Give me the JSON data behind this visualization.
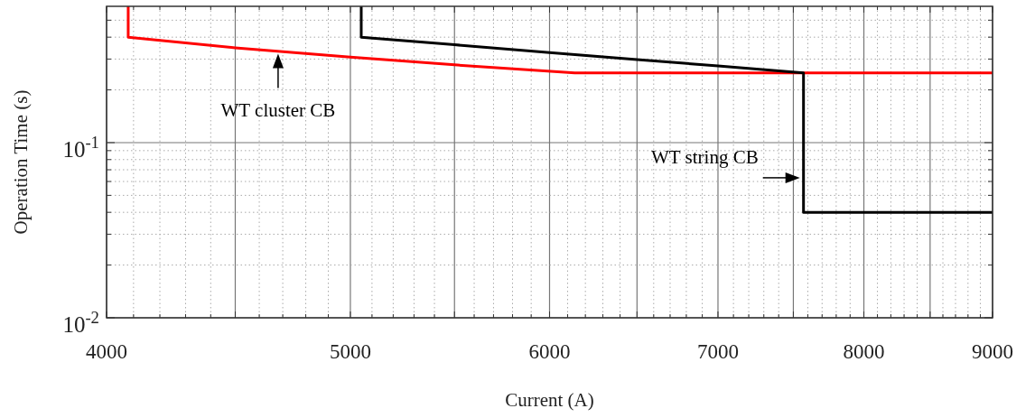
{
  "chart_data": {
    "type": "line",
    "xlabel": "Current (A)",
    "ylabel": "Operation Time (s)",
    "log": "xy",
    "grid": true,
    "line_style": "solid",
    "marker": "none",
    "xlim": [
      4000,
      9000
    ],
    "ylim": [
      0.01,
      0.6
    ],
    "xticks": [
      4000,
      {
        "value": 4100,
        "label": null
      },
      {
        "value": 4200,
        "label": null
      },
      {
        "value": 4300,
        "label": null
      },
      {
        "value": 4400,
        "label": null
      },
      {
        "value": 4500,
        "label": null
      },
      {
        "value": 4600,
        "label": null
      },
      {
        "value": 4700,
        "label": null
      },
      {
        "value": 4800,
        "label": null
      },
      {
        "value": 4900,
        "label": null
      },
      5000,
      {
        "value": 5100,
        "label": null
      },
      {
        "value": 5200,
        "label": null
      },
      {
        "value": 5300,
        "label": null
      },
      {
        "value": 5400,
        "label": null
      },
      {
        "value": 5500,
        "label": null
      },
      {
        "value": 5600,
        "label": null
      },
      {
        "value": 5700,
        "label": null
      },
      {
        "value": 5800,
        "label": null
      },
      {
        "value": 5900,
        "label": null
      },
      6000,
      {
        "value": 6100,
        "label": null
      },
      {
        "value": 6200,
        "label": null
      },
      {
        "value": 6300,
        "label": null
      },
      {
        "value": 6400,
        "label": null
      },
      {
        "value": 6500,
        "label": null
      },
      {
        "value": 6600,
        "label": null
      },
      {
        "value": 6700,
        "label": null
      },
      {
        "value": 6800,
        "label": null
      },
      {
        "value": 6900,
        "label": null
      },
      7000,
      {
        "value": 7100,
        "label": null
      },
      {
        "value": 7200,
        "label": null
      },
      {
        "value": 7300,
        "label": null
      },
      {
        "value": 7400,
        "label": null
      },
      {
        "value": 7500,
        "label": null
      },
      {
        "value": 7600,
        "label": null
      },
      {
        "value": 7700,
        "label": null
      },
      {
        "value": 7800,
        "label": null
      },
      {
        "value": 7900,
        "label": null
      },
      8000,
      {
        "value": 8100,
        "label": null
      },
      {
        "value": 8200,
        "label": null
      },
      {
        "value": 8300,
        "label": null
      },
      {
        "value": 8400,
        "label": null
      },
      {
        "value": 8500,
        "label": null
      },
      {
        "value": 8600,
        "label": null
      },
      {
        "value": 8700,
        "label": null
      },
      {
        "value": 8800,
        "label": null
      },
      {
        "value": 8900,
        "label": null
      },
      9000
    ],
    "yticks": [
      {
        "value": 0.01,
        "label": "10$^{-2}$"
      },
      {
        "value": 0.02,
        "label": null
      },
      {
        "value": 0.03,
        "label": null
      },
      {
        "value": 0.04,
        "label": null
      },
      {
        "value": 0.05,
        "label": null
      },
      {
        "value": 0.06,
        "label": null
      },
      {
        "value": 0.07,
        "label": null
      },
      {
        "value": 0.08,
        "label": null
      },
      {
        "value": 0.09,
        "label": null
      },
      {
        "value": 0.1,
        "label": "10$^{-1}$"
      },
      {
        "value": 0.2,
        "label": null
      },
      {
        "value": 0.3,
        "label": null
      },
      {
        "value": 0.4,
        "label": null
      },
      {
        "value": 0.5,
        "label": null
      }
    ],
    "series": [
      {
        "color": "#ff0000",
        "x": [
          4080,
          4080,
          4500,
          5000,
          5500,
          6140,
          9000
        ],
        "values": [
          0.6,
          0.4,
          0.348,
          0.308,
          0.278,
          0.25,
          0.25
        ]
      },
      {
        "color": "#000000",
        "x": [
          5050,
          5050,
          5500,
          6000,
          6500,
          7000,
          7570,
          7570,
          9000
        ],
        "values": [
          0.6,
          0.4,
          0.362,
          0.327,
          0.298,
          0.274,
          0.25,
          0.04,
          0.04
        ]
      }
    ],
    "annotations": [
      {
        "text": "WT cluster CB",
        "x": 4680,
        "y": 0.33
      },
      {
        "text": "WT string CB",
        "x": 7570,
        "y": 0.063
      }
    ]
  }
}
